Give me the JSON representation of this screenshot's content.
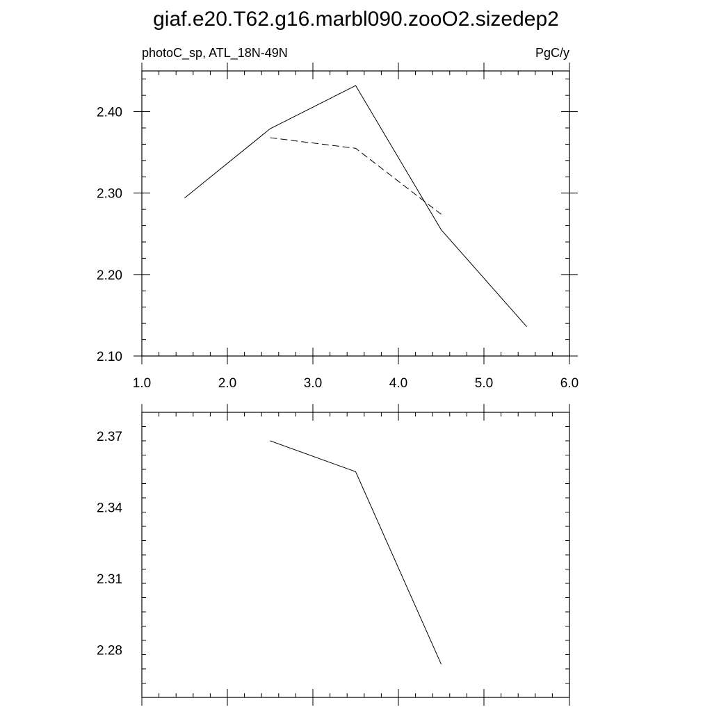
{
  "title": "giaf.e20.T62.g16.marbl090.zooO2.sizedep2",
  "chart_data": [
    {
      "type": "line",
      "subtitle_left": "photoC_sp, ATL_18N-49N",
      "subtitle_right": "PgC/y",
      "xlim": [
        1.0,
        6.0
      ],
      "ylim": [
        2.1,
        2.45
      ],
      "xticks": [
        1.0,
        2.0,
        3.0,
        4.0,
        5.0,
        6.0
      ],
      "xtick_labels": [
        "1.0",
        "2.0",
        "3.0",
        "4.0",
        "5.0",
        "6.0"
      ],
      "yticks": [
        2.1,
        2.2,
        2.3,
        2.4
      ],
      "ytick_labels": [
        "2.10",
        "2.20",
        "2.30",
        "2.40"
      ],
      "grid": false,
      "series": [
        {
          "style": "solid",
          "color": "#000000",
          "x": [
            1.5,
            2.5,
            3.5,
            4.5,
            5.5
          ],
          "y": [
            2.294,
            2.379,
            2.432,
            2.255,
            2.136
          ]
        },
        {
          "style": "dashed",
          "color": "#000000",
          "x": [
            2.5,
            3.5,
            4.5
          ],
          "y": [
            2.368,
            2.355,
            2.274
          ]
        }
      ]
    },
    {
      "type": "line",
      "xlim": [
        1.0,
        6.0
      ],
      "ylim": [
        2.26,
        2.38
      ],
      "yticks": [
        2.28,
        2.31,
        2.34,
        2.37
      ],
      "ytick_labels": [
        "2.28",
        "2.31",
        "2.34",
        "2.37"
      ],
      "grid": false,
      "series": [
        {
          "style": "solid",
          "color": "#000000",
          "x": [
            2.5,
            3.5,
            4.5
          ],
          "y": [
            2.368,
            2.355,
            2.274
          ]
        }
      ]
    }
  ]
}
